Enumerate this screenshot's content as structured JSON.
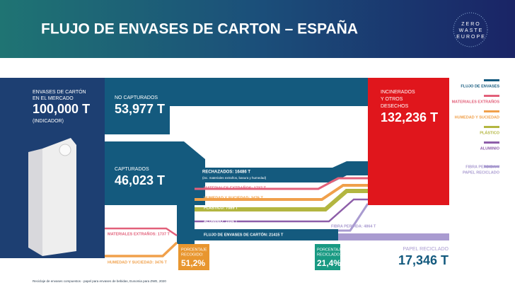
{
  "header": {
    "title": "FLUJO DE ENVASES DE CARTON – ESPAÑA",
    "logo": [
      "ZERO",
      "WASTE",
      "EUROPE"
    ]
  },
  "market": {
    "label": [
      "ENVASES DE CARTÓN",
      "EN EL MERCADO"
    ],
    "amount": "100,000 T",
    "note": "(INDICADOR)"
  },
  "not_captured": {
    "label": "NO CAPTURADOS",
    "amount": "53,977 T"
  },
  "captured": {
    "label": "CAPTURADOS",
    "amount": "46,023 T"
  },
  "incinerated": {
    "label": [
      "INCINERADOS",
      "Y OTROS",
      "DESECHOS"
    ],
    "amount": "132,236 T"
  },
  "rejected": {
    "label": "RECHAZADOS: 16486 T",
    "note": "(inc. materiales extraños, basura y humedad)"
  },
  "flows": [
    "MATERIALES EXTRAÑOS: 1737 T",
    "HUMEDAD Y SUCIEDAD: 3476 T",
    "PLÁSTICO: 7089 T",
    "ALUMINIO: 1034 T",
    "FLUJO DE ENVASES DE CARTÓN: 21415 T",
    "FIBRA PERDIDA: 4864 T"
  ],
  "inputs": [
    "MATERIALES EXTRAÑOS: 1737 T",
    "HUMEDAD Y SUCIEDAD: 3476 T"
  ],
  "collected": {
    "label": [
      "PORCENTAJE",
      "RECOGIDO:"
    ],
    "value": "51,2%"
  },
  "recycled": {
    "label": [
      "PORCENTAJE",
      "RECICLADO:"
    ],
    "value": "21,4%"
  },
  "recycled_paper": {
    "label": "PAPEL RECICLADO",
    "amount": "17,346 T"
  },
  "legend": [
    {
      "label": [
        "FLUJO DE ENVASES"
      ],
      "color": "#145a7e"
    },
    {
      "label": [
        "MATERIALES EXTRAÑOS"
      ],
      "color": "#e2607a"
    },
    {
      "label": [
        "HUMEDAD Y SUCIEDAD"
      ],
      "color": "#f0a04b"
    },
    {
      "label": [
        "PLÁSTICO"
      ],
      "color": "#b3b640"
    },
    {
      "label": [
        "ALUMINIO"
      ],
      "color": "#8d5ea9"
    },
    {
      "label": [
        "FIBRA PERDIDA Y",
        "PAPEL RECICLADO"
      ],
      "color": "#a99bd0"
    }
  ],
  "footer": "Reciclaje de envases compuestos - papel para envases de bebidas, Eunomia para ZWE, 2020"
}
